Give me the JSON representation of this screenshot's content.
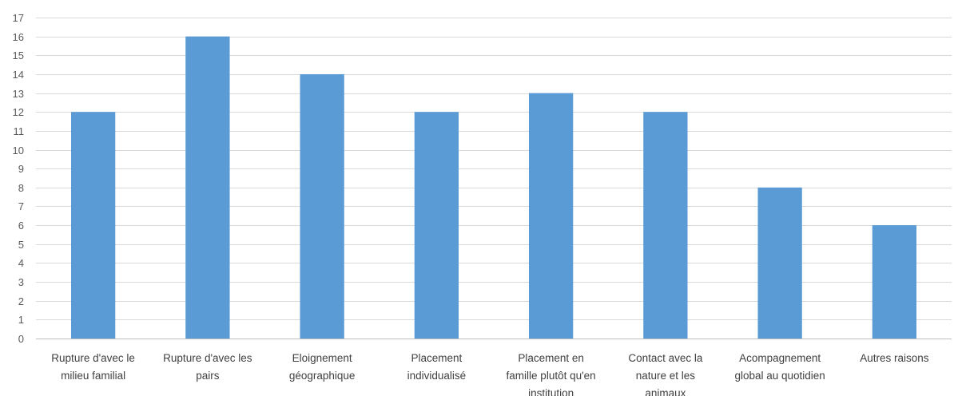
{
  "chart_data": {
    "type": "bar",
    "title": "",
    "xlabel": "",
    "ylabel": "",
    "categories": [
      [
        "Rupture d'avec le",
        "milieu familial"
      ],
      [
        "Rupture d'avec les",
        "pairs"
      ],
      [
        "Eloignement",
        "géographique"
      ],
      [
        "Placement",
        "individualisé"
      ],
      [
        "Placement en",
        "famille plutôt qu'en",
        "institution"
      ],
      [
        "Contact avec la",
        "nature et les",
        "animaux"
      ],
      [
        "Acompagnement",
        "global au quotidien"
      ],
      [
        "Autres raisons"
      ]
    ],
    "values": [
      12,
      16,
      14,
      12,
      13,
      12,
      8,
      6
    ],
    "ylim": [
      0,
      17
    ],
    "yticks": [
      0,
      1,
      2,
      3,
      4,
      5,
      6,
      7,
      8,
      9,
      10,
      11,
      12,
      13,
      14,
      15,
      16,
      17
    ],
    "grid": true,
    "legend": "none",
    "colors": {
      "bar": "#5b9bd5",
      "grid": "#d9d9d9",
      "text": "#404040"
    }
  }
}
